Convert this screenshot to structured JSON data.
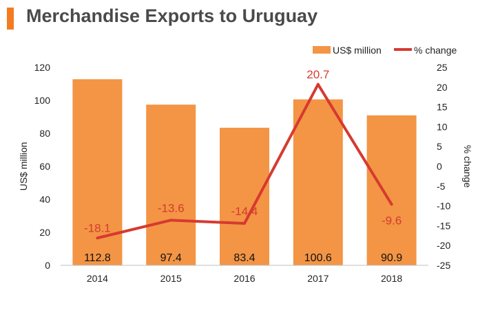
{
  "header": {
    "title": "Merchandise Exports to Uruguay"
  },
  "colors": {
    "bar": "#f39545",
    "line": "#d63a30",
    "title_bar": "#f47b20",
    "title_text": "#4a4a4a",
    "axis_text": "#222222"
  },
  "chart_data": {
    "type": "bar",
    "title": "Merchandise Exports to Uruguay",
    "categories": [
      "2014",
      "2015",
      "2016",
      "2017",
      "2018"
    ],
    "series": [
      {
        "name": "US$ million",
        "type": "bar",
        "axis": "left",
        "values": [
          112.8,
          97.4,
          83.4,
          100.6,
          90.9
        ],
        "labels": [
          "112.8",
          "97.4",
          "83.4",
          "100.6",
          "90.9"
        ]
      },
      {
        "name": "% change",
        "type": "line",
        "axis": "right",
        "values": [
          -18.1,
          -13.6,
          -14.4,
          20.7,
          -9.6
        ],
        "labels": [
          "-18.1",
          "-13.6",
          "-14.4",
          "20.7",
          "-9.6"
        ]
      }
    ],
    "ylabel": "US$ million",
    "y2label": "% change",
    "ylim": [
      0,
      120
    ],
    "y2lim": [
      -25,
      25
    ],
    "yticks": [
      "0",
      "20",
      "40",
      "60",
      "80",
      "100",
      "120"
    ],
    "y2ticks": [
      "-25",
      "-20",
      "-15",
      "-10",
      "-5",
      "0",
      "5",
      "10",
      "15",
      "20",
      "25"
    ],
    "legend": "top-right",
    "grid": false
  }
}
